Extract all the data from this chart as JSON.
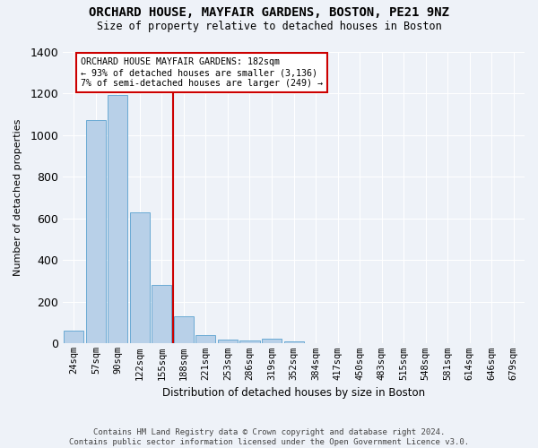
{
  "title": "ORCHARD HOUSE, MAYFAIR GARDENS, BOSTON, PE21 9NZ",
  "subtitle": "Size of property relative to detached houses in Boston",
  "xlabel": "Distribution of detached houses by size in Boston",
  "ylabel": "Number of detached properties",
  "categories": [
    "24sqm",
    "57sqm",
    "90sqm",
    "122sqm",
    "155sqm",
    "188sqm",
    "221sqm",
    "253sqm",
    "286sqm",
    "319sqm",
    "352sqm",
    "384sqm",
    "417sqm",
    "450sqm",
    "483sqm",
    "515sqm",
    "548sqm",
    "581sqm",
    "614sqm",
    "646sqm",
    "679sqm"
  ],
  "values": [
    60,
    1070,
    1190,
    630,
    280,
    130,
    40,
    20,
    15,
    25,
    10,
    0,
    0,
    0,
    0,
    0,
    0,
    0,
    0,
    0,
    0
  ],
  "bar_color": "#b8d0e8",
  "bar_edge_color": "#6aaad4",
  "property_line_label": "ORCHARD HOUSE MAYFAIR GARDENS: 182sqm",
  "annotation_line1": "← 93% of detached houses are smaller (3,136)",
  "annotation_line2": "7% of semi-detached houses are larger (249) →",
  "vline_color": "#cc0000",
  "background_color": "#eef2f8",
  "grid_color": "#ffffff",
  "footnote": "Contains HM Land Registry data © Crown copyright and database right 2024.\nContains public sector information licensed under the Open Government Licence v3.0.",
  "ylim": [
    0,
    1400
  ],
  "yticks": [
    0,
    200,
    400,
    600,
    800,
    1000,
    1200,
    1400
  ],
  "vline_x": 4.5,
  "figwidth": 6.0,
  "figheight": 5.0,
  "dpi": 100
}
